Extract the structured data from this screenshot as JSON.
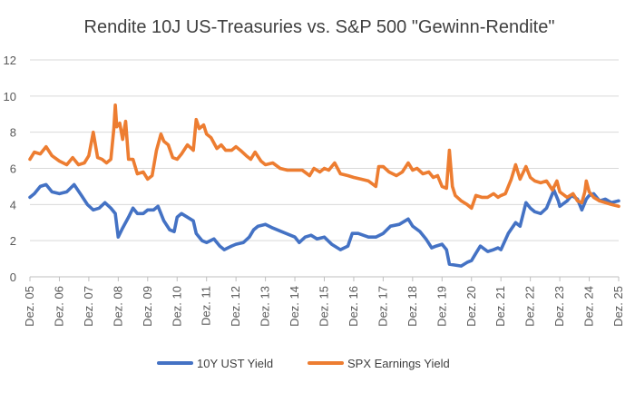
{
  "chart_data": {
    "type": "line",
    "title": "Rendite 10J US-Treasuries vs. S&P 500 \"Gewinn-Rendite\"",
    "xlabel": "",
    "ylabel": "",
    "ylim": [
      0,
      12
    ],
    "yticks": [
      "0",
      "2",
      "4",
      "6",
      "8",
      "10",
      "12"
    ],
    "xlim": [
      2005.95,
      2025.95
    ],
    "x_tick_labels": [
      "Dez. 05",
      "Dez. 06",
      "Dez. 07",
      "Dez. 08",
      "Dez. 09",
      "Dez. 10",
      "Dez. 11",
      "Dez. 12",
      "Dez. 13",
      "Dez. 14",
      "Dez. 15",
      "Dez. 16",
      "Dez. 17",
      "Dez. 18",
      "Dez. 19",
      "Dez. 20",
      "Dez. 21",
      "Dez. 22",
      "Dez. 23",
      "Dez. 24",
      "Dez. 25"
    ],
    "x_tick_values": [
      2005.95,
      2006.95,
      2007.95,
      2008.95,
      2009.95,
      2010.95,
      2011.95,
      2012.95,
      2013.95,
      2014.95,
      2015.95,
      2016.95,
      2017.95,
      2018.95,
      2019.95,
      2020.95,
      2021.95,
      2022.95,
      2023.95,
      2024.95,
      2025.95
    ],
    "grid": true,
    "legend_position": "bottom",
    "series": [
      {
        "name": "10Y UST Yield",
        "color": "#4472c4",
        "points": [
          [
            2005.95,
            4.4
          ],
          [
            2006.1,
            4.6
          ],
          [
            2006.3,
            5.0
          ],
          [
            2006.5,
            5.1
          ],
          [
            2006.7,
            4.7
          ],
          [
            2006.95,
            4.6
          ],
          [
            2007.2,
            4.7
          ],
          [
            2007.45,
            5.1
          ],
          [
            2007.7,
            4.5
          ],
          [
            2007.9,
            4.0
          ],
          [
            2008.1,
            3.7
          ],
          [
            2008.3,
            3.8
          ],
          [
            2008.5,
            4.1
          ],
          [
            2008.7,
            3.8
          ],
          [
            2008.85,
            3.5
          ],
          [
            2008.95,
            2.2
          ],
          [
            2009.1,
            2.7
          ],
          [
            2009.3,
            3.3
          ],
          [
            2009.45,
            3.8
          ],
          [
            2009.6,
            3.5
          ],
          [
            2009.8,
            3.5
          ],
          [
            2009.95,
            3.7
          ],
          [
            2010.15,
            3.7
          ],
          [
            2010.3,
            3.9
          ],
          [
            2010.5,
            3.1
          ],
          [
            2010.7,
            2.6
          ],
          [
            2010.85,
            2.5
          ],
          [
            2010.95,
            3.3
          ],
          [
            2011.1,
            3.5
          ],
          [
            2011.3,
            3.3
          ],
          [
            2011.5,
            3.1
          ],
          [
            2011.6,
            2.4
          ],
          [
            2011.8,
            2.0
          ],
          [
            2011.95,
            1.9
          ],
          [
            2012.2,
            2.1
          ],
          [
            2012.4,
            1.7
          ],
          [
            2012.55,
            1.5
          ],
          [
            2012.8,
            1.7
          ],
          [
            2012.95,
            1.8
          ],
          [
            2013.2,
            1.9
          ],
          [
            2013.4,
            2.2
          ],
          [
            2013.55,
            2.6
          ],
          [
            2013.7,
            2.8
          ],
          [
            2013.95,
            2.9
          ],
          [
            2014.2,
            2.7
          ],
          [
            2014.5,
            2.5
          ],
          [
            2014.8,
            2.3
          ],
          [
            2014.95,
            2.2
          ],
          [
            2015.1,
            1.9
          ],
          [
            2015.3,
            2.2
          ],
          [
            2015.5,
            2.3
          ],
          [
            2015.7,
            2.1
          ],
          [
            2015.95,
            2.2
          ],
          [
            2016.2,
            1.8
          ],
          [
            2016.5,
            1.5
          ],
          [
            2016.75,
            1.7
          ],
          [
            2016.9,
            2.4
          ],
          [
            2017.1,
            2.4
          ],
          [
            2017.45,
            2.2
          ],
          [
            2017.7,
            2.2
          ],
          [
            2017.95,
            2.4
          ],
          [
            2018.2,
            2.8
          ],
          [
            2018.5,
            2.9
          ],
          [
            2018.8,
            3.2
          ],
          [
            2018.95,
            2.8
          ],
          [
            2019.2,
            2.5
          ],
          [
            2019.4,
            2.1
          ],
          [
            2019.6,
            1.6
          ],
          [
            2019.75,
            1.7
          ],
          [
            2019.95,
            1.8
          ],
          [
            2020.1,
            1.5
          ],
          [
            2020.2,
            0.7
          ],
          [
            2020.4,
            0.65
          ],
          [
            2020.6,
            0.6
          ],
          [
            2020.8,
            0.8
          ],
          [
            2020.95,
            0.9
          ],
          [
            2021.1,
            1.3
          ],
          [
            2021.25,
            1.7
          ],
          [
            2021.5,
            1.4
          ],
          [
            2021.7,
            1.5
          ],
          [
            2021.85,
            1.6
          ],
          [
            2021.95,
            1.5
          ],
          [
            2022.2,
            2.4
          ],
          [
            2022.45,
            3.0
          ],
          [
            2022.6,
            2.8
          ],
          [
            2022.8,
            4.1
          ],
          [
            2022.95,
            3.8
          ],
          [
            2023.1,
            3.6
          ],
          [
            2023.3,
            3.5
          ],
          [
            2023.5,
            3.8
          ],
          [
            2023.75,
            4.8
          ],
          [
            2023.9,
            4.2
          ],
          [
            2023.95,
            3.9
          ],
          [
            2024.2,
            4.2
          ],
          [
            2024.35,
            4.5
          ],
          [
            2024.55,
            4.3
          ],
          [
            2024.7,
            3.7
          ],
          [
            2024.85,
            4.3
          ],
          [
            2024.95,
            4.5
          ],
          [
            2025.1,
            4.6
          ],
          [
            2025.3,
            4.2
          ],
          [
            2025.5,
            4.3
          ],
          [
            2025.7,
            4.1
          ],
          [
            2025.95,
            4.2
          ]
        ]
      },
      {
        "name": "SPX Earnings Yield",
        "color": "#ed7d31",
        "points": [
          [
            2005.95,
            6.5
          ],
          [
            2006.1,
            6.9
          ],
          [
            2006.3,
            6.8
          ],
          [
            2006.5,
            7.2
          ],
          [
            2006.7,
            6.7
          ],
          [
            2006.95,
            6.4
          ],
          [
            2007.2,
            6.2
          ],
          [
            2007.4,
            6.6
          ],
          [
            2007.6,
            6.2
          ],
          [
            2007.8,
            6.3
          ],
          [
            2007.95,
            6.7
          ],
          [
            2008.1,
            8.0
          ],
          [
            2008.25,
            6.6
          ],
          [
            2008.4,
            6.5
          ],
          [
            2008.55,
            6.3
          ],
          [
            2008.7,
            6.5
          ],
          [
            2008.8,
            8.2
          ],
          [
            2008.85,
            9.5
          ],
          [
            2008.9,
            8.3
          ],
          [
            2009.0,
            8.5
          ],
          [
            2009.1,
            7.6
          ],
          [
            2009.2,
            8.6
          ],
          [
            2009.3,
            6.5
          ],
          [
            2009.45,
            6.5
          ],
          [
            2009.6,
            5.7
          ],
          [
            2009.8,
            5.8
          ],
          [
            2009.95,
            5.4
          ],
          [
            2010.1,
            5.6
          ],
          [
            2010.25,
            7.0
          ],
          [
            2010.4,
            7.9
          ],
          [
            2010.5,
            7.5
          ],
          [
            2010.65,
            7.3
          ],
          [
            2010.8,
            6.6
          ],
          [
            2010.95,
            6.5
          ],
          [
            2011.1,
            6.8
          ],
          [
            2011.3,
            7.3
          ],
          [
            2011.5,
            7.0
          ],
          [
            2011.6,
            8.7
          ],
          [
            2011.7,
            8.2
          ],
          [
            2011.85,
            8.4
          ],
          [
            2011.95,
            7.9
          ],
          [
            2012.1,
            7.7
          ],
          [
            2012.3,
            7.1
          ],
          [
            2012.45,
            7.3
          ],
          [
            2012.6,
            7.0
          ],
          [
            2012.8,
            7.0
          ],
          [
            2012.95,
            7.2
          ],
          [
            2013.1,
            7.0
          ],
          [
            2013.3,
            6.7
          ],
          [
            2013.45,
            6.5
          ],
          [
            2013.6,
            6.9
          ],
          [
            2013.8,
            6.4
          ],
          [
            2013.95,
            6.2
          ],
          [
            2014.2,
            6.3
          ],
          [
            2014.45,
            6.0
          ],
          [
            2014.7,
            5.9
          ],
          [
            2014.95,
            5.9
          ],
          [
            2015.2,
            5.9
          ],
          [
            2015.45,
            5.6
          ],
          [
            2015.6,
            6.0
          ],
          [
            2015.8,
            5.8
          ],
          [
            2015.95,
            6.0
          ],
          [
            2016.1,
            5.9
          ],
          [
            2016.3,
            6.3
          ],
          [
            2016.5,
            5.7
          ],
          [
            2016.75,
            5.6
          ],
          [
            2016.95,
            5.5
          ],
          [
            2017.2,
            5.4
          ],
          [
            2017.45,
            5.3
          ],
          [
            2017.7,
            5.0
          ],
          [
            2017.8,
            6.1
          ],
          [
            2017.95,
            6.1
          ],
          [
            2018.15,
            5.8
          ],
          [
            2018.4,
            5.6
          ],
          [
            2018.6,
            5.8
          ],
          [
            2018.8,
            6.3
          ],
          [
            2018.95,
            5.9
          ],
          [
            2019.1,
            6.0
          ],
          [
            2019.3,
            5.7
          ],
          [
            2019.5,
            5.8
          ],
          [
            2019.65,
            5.5
          ],
          [
            2019.8,
            5.6
          ],
          [
            2019.95,
            5.0
          ],
          [
            2020.1,
            4.9
          ],
          [
            2020.2,
            7.0
          ],
          [
            2020.3,
            5.0
          ],
          [
            2020.4,
            4.5
          ],
          [
            2020.6,
            4.2
          ],
          [
            2020.8,
            4.0
          ],
          [
            2020.95,
            3.8
          ],
          [
            2021.1,
            4.5
          ],
          [
            2021.3,
            4.4
          ],
          [
            2021.5,
            4.4
          ],
          [
            2021.7,
            4.6
          ],
          [
            2021.85,
            4.4
          ],
          [
            2021.95,
            4.5
          ],
          [
            2022.1,
            4.6
          ],
          [
            2022.3,
            5.4
          ],
          [
            2022.45,
            6.2
          ],
          [
            2022.6,
            5.4
          ],
          [
            2022.8,
            6.1
          ],
          [
            2022.95,
            5.5
          ],
          [
            2023.1,
            5.3
          ],
          [
            2023.3,
            5.2
          ],
          [
            2023.5,
            5.3
          ],
          [
            2023.7,
            4.8
          ],
          [
            2023.85,
            5.3
          ],
          [
            2023.95,
            4.7
          ],
          [
            2024.2,
            4.4
          ],
          [
            2024.4,
            4.6
          ],
          [
            2024.55,
            4.2
          ],
          [
            2024.7,
            4.1
          ],
          [
            2024.8,
            4.7
          ],
          [
            2024.85,
            5.3
          ],
          [
            2024.95,
            4.7
          ],
          [
            2025.1,
            4.4
          ],
          [
            2025.3,
            4.2
          ],
          [
            2025.5,
            4.1
          ],
          [
            2025.7,
            4.0
          ],
          [
            2025.95,
            3.9
          ]
        ]
      }
    ]
  }
}
